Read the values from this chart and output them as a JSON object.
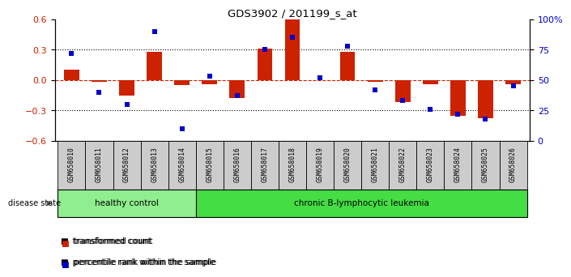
{
  "title": "GDS3902 / 201199_s_at",
  "samples": [
    "GSM658010",
    "GSM658011",
    "GSM658012",
    "GSM658013",
    "GSM658014",
    "GSM658015",
    "GSM658016",
    "GSM658017",
    "GSM658018",
    "GSM658019",
    "GSM658020",
    "GSM658021",
    "GSM658022",
    "GSM658023",
    "GSM658024",
    "GSM658025",
    "GSM658026"
  ],
  "bar_values": [
    0.1,
    -0.02,
    -0.15,
    0.28,
    -0.05,
    -0.04,
    -0.18,
    0.31,
    0.61,
    0.0,
    0.28,
    -0.02,
    -0.22,
    -0.04,
    -0.35,
    -0.38,
    -0.04
  ],
  "pct_values": [
    72,
    40,
    30,
    90,
    10,
    53,
    37,
    75,
    85,
    52,
    78,
    42,
    33,
    26,
    22,
    18,
    45
  ],
  "healthy_count": 5,
  "group_labels": [
    "healthy control",
    "chronic B-lymphocytic leukemia"
  ],
  "ylim": [
    -0.6,
    0.6
  ],
  "y2lim": [
    0,
    100
  ],
  "yticks": [
    -0.6,
    -0.3,
    0.0,
    0.3,
    0.6
  ],
  "y2ticks": [
    0,
    25,
    50,
    75,
    100
  ],
  "bar_color": "#cc2200",
  "pct_color": "#0000cc",
  "hc_color": "#90ee90",
  "leuk_color": "#44dd44",
  "legend_bar": "transformed count",
  "legend_pct": "percentile rank within the sample",
  "disease_state_label": "disease state",
  "label_bg": "#cccccc"
}
